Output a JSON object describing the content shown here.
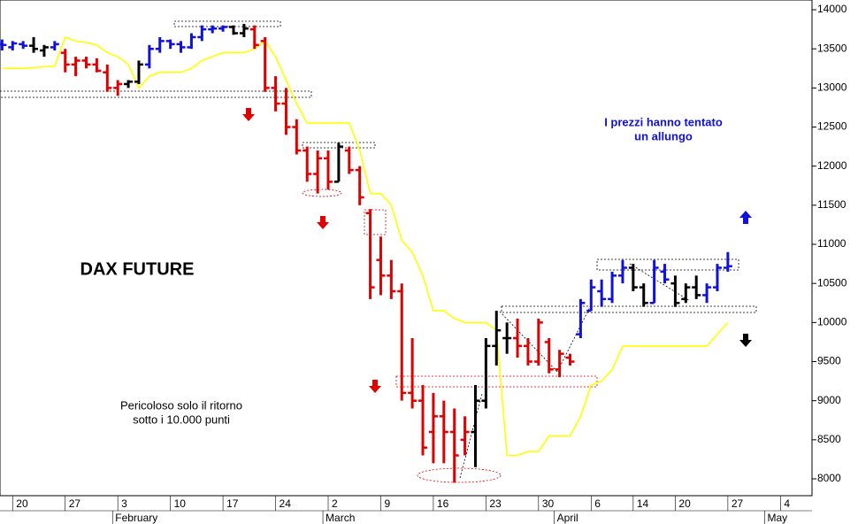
{
  "chart_data": {
    "type": "ohlc",
    "title": "DAX FUTURE",
    "annotations": [
      [
        "I prezzi hanno tentato",
        "un allungo"
      ],
      [
        "Pericoloso solo il ritorno",
        "sotto i 10.000 punti"
      ]
    ],
    "x": [
      -1,
      0,
      1,
      2,
      3,
      4,
      5,
      6,
      7,
      8,
      9,
      10,
      11,
      12,
      13,
      14,
      15,
      16,
      17,
      18,
      19,
      20,
      21,
      22,
      23,
      24,
      25,
      26,
      27,
      28,
      29,
      30,
      31,
      32,
      33,
      34,
      35,
      36,
      37,
      38,
      39,
      40,
      41,
      42,
      43,
      44,
      45,
      46,
      47,
      48,
      49,
      50,
      51,
      52,
      53,
      54,
      55,
      56,
      57,
      58,
      59,
      60,
      61,
      62,
      63,
      64,
      65,
      66,
      67,
      68
    ],
    "open": [
      13560,
      13520,
      13560,
      13540,
      13480,
      13520,
      13450,
      13300,
      13350,
      13300,
      13200,
      13000,
      13050,
      13080,
      13300,
      13500,
      13600,
      13560,
      13520,
      13650,
      13750,
      13760,
      13780,
      13700,
      13750,
      13600,
      13000,
      12800,
      12500,
      12200,
      11900,
      12100,
      11800,
      12200,
      11950,
      11400,
      10800,
      10600,
      10400,
      9100,
      9000,
      8600,
      8800,
      8600,
      8500,
      8600,
      9000,
      9700,
      9800,
      9800,
      9700,
      9500,
      9750,
      9400,
      9550,
      9850,
      10150,
      10400,
      10300,
      10600,
      10700,
      10450,
      10250,
      10650,
      10500,
      10300,
      10450,
      10350,
      10450,
      10700
    ],
    "high": [
      13620,
      13600,
      13600,
      13650,
      13550,
      13600,
      13500,
      13400,
      13400,
      13380,
      13300,
      13100,
      13100,
      13350,
      13550,
      13650,
      13620,
      13600,
      13700,
      13800,
      13800,
      13800,
      13800,
      13820,
      13800,
      13650,
      13150,
      13000,
      12600,
      12250,
      12200,
      12200,
      12300,
      12250,
      12000,
      11450,
      11100,
      10800,
      10500,
      9800,
      9200,
      9100,
      9000,
      8900,
      8800,
      9200,
      9800,
      10150,
      10000,
      10050,
      9800,
      10050,
      9800,
      9650,
      9600,
      10300,
      10550,
      10550,
      10650,
      10800,
      10750,
      10500,
      10800,
      10750,
      10600,
      10500,
      10600,
      10500,
      10750,
      10900
    ],
    "low": [
      13480,
      13480,
      13500,
      13450,
      13400,
      13480,
      13200,
      13150,
      13250,
      13200,
      12950,
      12900,
      13000,
      13050,
      13250,
      13450,
      13500,
      13450,
      13500,
      13600,
      13700,
      13720,
      13680,
      13650,
      13500,
      12950,
      12700,
      12400,
      12150,
      11800,
      11650,
      11700,
      11800,
      11900,
      11500,
      10300,
      10350,
      10300,
      9000,
      8900,
      8300,
      8200,
      8200,
      7950,
      8300,
      8150,
      8900,
      9450,
      9600,
      9550,
      9450,
      9450,
      9350,
      9300,
      9450,
      9800,
      10150,
      10200,
      10250,
      10500,
      10400,
      10200,
      10250,
      10500,
      10200,
      10250,
      10300,
      10250,
      10400,
      10650
    ],
    "close": [
      13550,
      13570,
      13540,
      13500,
      13520,
      13560,
      13300,
      13350,
      13300,
      13220,
      13000,
      13050,
      13080,
      13300,
      13500,
      13600,
      13560,
      13520,
      13650,
      13750,
      13760,
      13780,
      13700,
      13760,
      13550,
      13000,
      12800,
      12500,
      12200,
      11900,
      12100,
      11800,
      12250,
      11950,
      11600,
      10450,
      10600,
      10400,
      9100,
      9000,
      8400,
      8800,
      8600,
      8300,
      8600,
      9000,
      9700,
      9900,
      9800,
      9700,
      9500,
      10000,
      9400,
      9600,
      9500,
      10250,
      10450,
      10300,
      10600,
      10700,
      10450,
      10250,
      10700,
      10550,
      10250,
      10450,
      10350,
      10450,
      10700,
      10720
    ],
    "colors": [
      "#1010e0",
      "#1010e0",
      "#1010e0",
      "#000000",
      "#000000",
      "#1010e0",
      "#e00000",
      "#e00000",
      "#e00000",
      "#e00000",
      "#e00000",
      "#e00000",
      "#000000",
      "#000000",
      "#1010e0",
      "#1010e0",
      "#1010e0",
      "#1010e0",
      "#1010e0",
      "#1010e0",
      "#1010e0",
      "#1010e0",
      "#000000",
      "#000000",
      "#e00000",
      "#e00000",
      "#e00000",
      "#e00000",
      "#e00000",
      "#e00000",
      "#e00000",
      "#e00000",
      "#000000",
      "#e00000",
      "#e00000",
      "#e00000",
      "#e00000",
      "#e00000",
      "#e00000",
      "#e00000",
      "#e00000",
      "#e00000",
      "#e00000",
      "#e00000",
      "#e00000",
      "#000000",
      "#000000",
      "#000000",
      "#000000",
      "#e00000",
      "#e00000",
      "#e00000",
      "#e00000",
      "#e00000",
      "#e00000",
      "#1010e0",
      "#1010e0",
      "#1010e0",
      "#1010e0",
      "#1010e0",
      "#000000",
      "#000000",
      "#1010e0",
      "#1010e0",
      "#000000",
      "#000000",
      "#000000",
      "#1010e0",
      "#1010e0",
      "#1010e0"
    ],
    "moving_average": {
      "color": "#ffff00",
      "values": [
        13250,
        13250,
        13250,
        13260,
        13270,
        13280,
        13650,
        13600,
        13580,
        13550,
        13450,
        13400,
        13300,
        13000,
        13150,
        13200,
        13200,
        13200,
        13250,
        13350,
        13400,
        13450,
        13450,
        13450,
        13500,
        13600,
        13400,
        13100,
        12800,
        12550,
        12550,
        12550,
        12550,
        12550,
        12200,
        11650,
        11650,
        11500,
        11050,
        10900,
        10600,
        10150,
        10150,
        10050,
        10000,
        10000,
        10000,
        9900,
        8300,
        8300,
        8350,
        8350,
        8550,
        8550,
        8550,
        8800,
        9200,
        9250,
        9400,
        9700,
        9700,
        9700,
        9700,
        9700,
        9700,
        9700,
        9700,
        9700,
        9850,
        10000
      ]
    },
    "xlim": [
      -1.2,
      76
    ],
    "ylim": [
      7785,
      14125
    ],
    "yticks": [
      8000,
      8500,
      9000,
      9500,
      10000,
      10500,
      11000,
      11500,
      12000,
      12500,
      13000,
      13500,
      14000
    ],
    "xticks": [
      {
        "value": 0,
        "label": "20"
      },
      {
        "value": 5,
        "label": "27"
      },
      {
        "value": 10,
        "label": "3"
      },
      {
        "value": 15,
        "label": "10"
      },
      {
        "value": 20,
        "label": "17"
      },
      {
        "value": 25,
        "label": "24"
      },
      {
        "value": 30,
        "label": "2"
      },
      {
        "value": 35,
        "label": "9"
      },
      {
        "value": 40,
        "label": "16"
      },
      {
        "value": 45,
        "label": "23"
      },
      {
        "value": 50,
        "label": "30"
      },
      {
        "value": 55,
        "label": "6"
      },
      {
        "value": 59,
        "label": "14"
      },
      {
        "value": 63,
        "label": "20"
      },
      {
        "value": 68,
        "label": "27"
      },
      {
        "value": 73,
        "label": "4"
      }
    ],
    "month_ticks": [
      {
        "value": 9.5,
        "label": "February"
      },
      {
        "value": 29.5,
        "label": "March"
      },
      {
        "value": 51.5,
        "label": "April"
      },
      {
        "value": 71.5,
        "label": "May"
      }
    ]
  }
}
